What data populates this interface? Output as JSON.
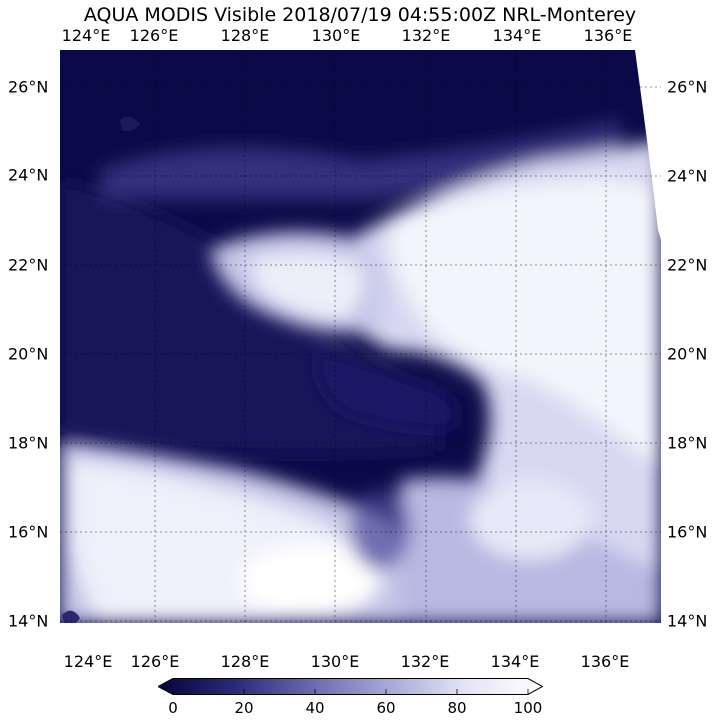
{
  "title": "AQUA MODIS Visible 2018/07/19 04:55:00Z NRL-Monterey",
  "lon_labels": [
    "124°E",
    "126°E",
    "128°E",
    "130°E",
    "132°E",
    "134°E",
    "136°E"
  ],
  "lat_labels_left": [
    "26°N",
    "24°N",
    "22°N",
    "20°N",
    "18°N",
    "16°N",
    "14°N"
  ],
  "lat_labels_right": [
    "26°N",
    "24°N",
    "22°N",
    "20°N",
    "18°N",
    "16°N",
    "14°N"
  ],
  "colorbar": {
    "ticks": [
      "0",
      "20",
      "40",
      "60",
      "80",
      "100"
    ],
    "colors": [
      "#05053a",
      "#2a2a7a",
      "#6a6aae",
      "#a8a8d8",
      "#e4e4f6",
      "#ffffff"
    ]
  }
}
